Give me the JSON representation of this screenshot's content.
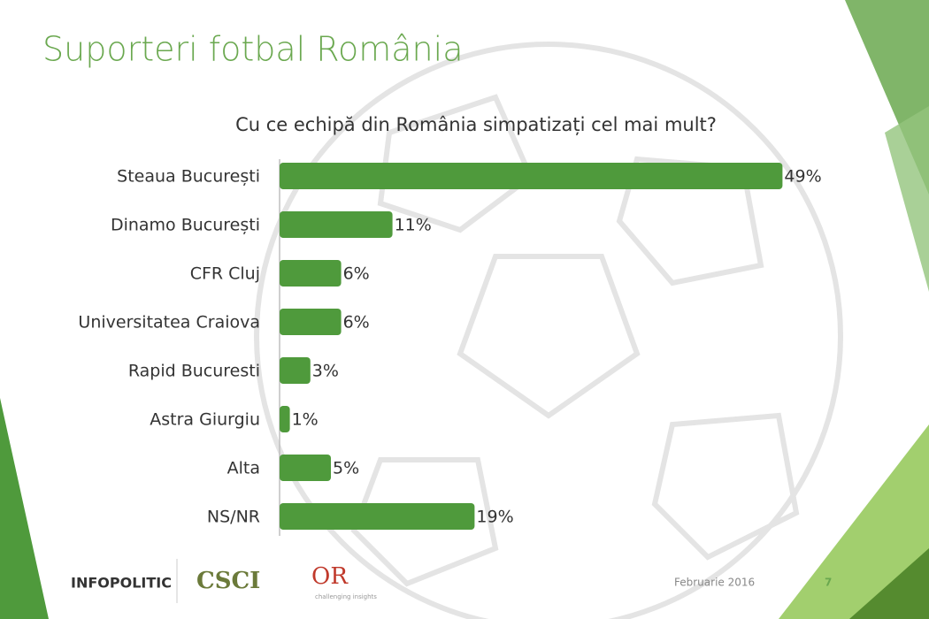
{
  "chart_data": {
    "type": "bar",
    "orientation": "horizontal",
    "title": "Suporteri fotbal România",
    "subtitle": "Cu ce echipă din România simpatizați cel mai mult?",
    "categories": [
      "Steaua București",
      "Dinamo București",
      "CFR Cluj",
      "Universitatea Craiova",
      "Rapid Bucuresti",
      "Astra Giurgiu",
      "Alta",
      "NS/NR"
    ],
    "values": [
      49,
      11,
      6,
      6,
      3,
      1,
      5,
      19
    ],
    "value_labels": [
      "49%",
      "11%",
      "6%",
      "6%",
      "3%",
      "1%",
      "5%",
      "19%"
    ],
    "color": "#4f9a3c"
  },
  "footer": {
    "logos": [
      "INFOPOLITIC",
      "CSCI",
      "OR",
      "challenging insights"
    ],
    "date": "Februarie 2016",
    "page": "7"
  }
}
